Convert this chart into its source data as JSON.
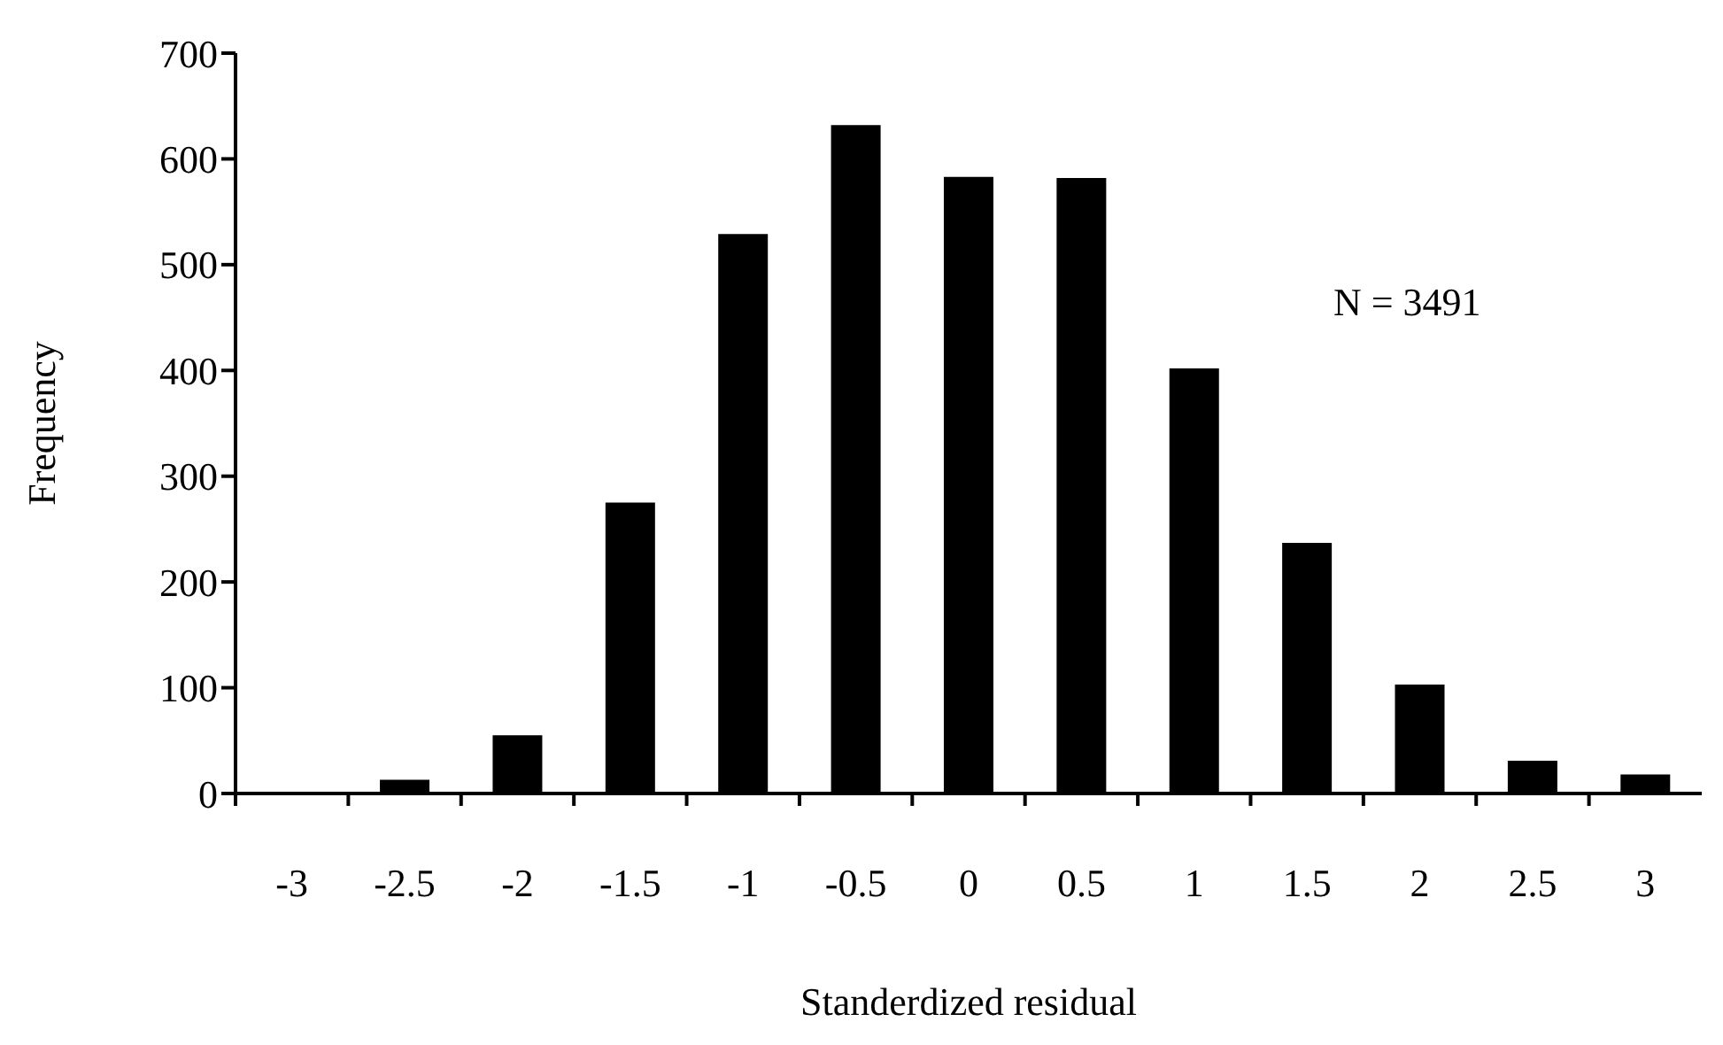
{
  "chart_data": {
    "type": "bar",
    "xlabel": "Standerdized residual",
    "ylabel": "Frequency",
    "categories": [
      "-3",
      "-2.5",
      "-2",
      "-1.5",
      "-1",
      "-0.5",
      "0",
      "0.5",
      "1",
      "1.5",
      "2",
      "2.5",
      "3"
    ],
    "values": [
      0,
      13,
      55,
      275,
      529,
      632,
      583,
      582,
      402,
      237,
      103,
      31,
      18
    ],
    "color": "#000000",
    "ylim": [
      0,
      700
    ],
    "yticks": [
      0,
      100,
      200,
      300,
      400,
      500,
      600,
      700
    ],
    "annotations": [
      "N = 3491"
    ]
  }
}
